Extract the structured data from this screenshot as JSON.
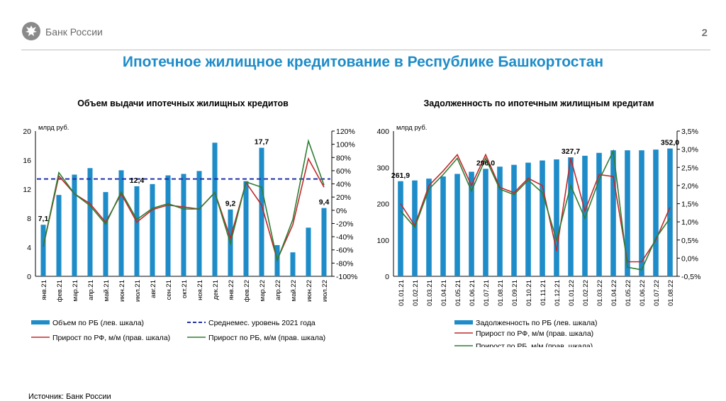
{
  "header": {
    "bank_name": "Банк России",
    "page_number": "2",
    "logo_icon": "eagle-emblem-icon"
  },
  "main_title": "Ипотечное жилищное кредитование в Республике Башкортостан",
  "source": "Источник: Банк России",
  "colors": {
    "bar": "#1e8cc8",
    "red_line": "#c0282c",
    "green_line": "#2e7d32",
    "avg_line": "#1f2fa8",
    "title": "#1e8cc8"
  },
  "chart_data": [
    {
      "type": "bar",
      "title": "Объем выдачи ипотечных жилищных кредитов",
      "ylabel": "млрд руб.",
      "ylim": [
        0,
        20
      ],
      "y_ticks": [
        "0",
        "4",
        "8",
        "12",
        "16",
        "20"
      ],
      "y2lim": [
        -100,
        120
      ],
      "y2_ticks": [
        "-100%",
        "-80%",
        "-60%",
        "-40%",
        "-20%",
        "0%",
        "20%",
        "40%",
        "60%",
        "80%",
        "100%",
        "120%"
      ],
      "categories": [
        "янв.21",
        "фев.21",
        "мар.21",
        "апр.21",
        "май.21",
        "июн.21",
        "июл.21",
        "авг.21",
        "сен.21",
        "окт.21",
        "ноя.21",
        "дек.21",
        "янв.22",
        "фев.22",
        "мар.22",
        "апр.22",
        "май.22",
        "июн.22",
        "июл.22"
      ],
      "series": [
        {
          "name": "Объем по РБ (лев. шкала)",
          "axis": "left",
          "values": [
            7.1,
            11.2,
            14.0,
            14.9,
            11.6,
            14.6,
            12.4,
            12.7,
            13.9,
            14.1,
            14.5,
            18.4,
            9.2,
            13.1,
            17.7,
            4.3,
            3.3,
            6.7,
            9.4
          ]
        },
        {
          "name": "Прирост по РФ, м/м (прав. шкала)",
          "axis": "right",
          "values": [
            -55,
            52,
            25,
            10,
            -18,
            25,
            -18,
            1,
            8,
            5,
            2,
            27,
            -42,
            42,
            8,
            -75,
            -22,
            78,
            35
          ]
        },
        {
          "name": "Прирост по РБ, м/м (прав. шкала)",
          "axis": "right",
          "values": [
            -55,
            57,
            25,
            7,
            -21,
            28,
            -14,
            3,
            10,
            2,
            2,
            27,
            -50,
            43,
            35,
            -76,
            -14,
            105,
            38
          ]
        }
      ],
      "avg_line": {
        "name": "Среднемес. уровень 2021 года",
        "value": 13.4
      },
      "data_labels": [
        {
          "index": 0,
          "text": "7,1"
        },
        {
          "index": 6,
          "text": "12,4"
        },
        {
          "index": 12,
          "text": "9,2"
        },
        {
          "index": 14,
          "text": "17,7"
        },
        {
          "index": 18,
          "text": "9,4"
        }
      ],
      "legend": [
        "Объем по РБ (лев. шкала)",
        "Среднемес. уровень 2021 года",
        "Прирост по РФ, м/м (прав. шкала)",
        "Прирост по РБ, м/м (прав. шкала)"
      ]
    },
    {
      "type": "bar",
      "title": "Задолженность по ипотечным жилищным кредитам",
      "ylabel": "млрд руб.",
      "ylim": [
        0,
        400
      ],
      "y_ticks": [
        "0",
        "100",
        "200",
        "300",
        "400"
      ],
      "y2lim": [
        -0.5,
        3.5
      ],
      "y2_ticks": [
        "-0,5%",
        "0,0%",
        "0,5%",
        "1,0%",
        "1,5%",
        "2,0%",
        "2,5%",
        "3,0%",
        "3,5%"
      ],
      "categories": [
        "01.01.21",
        "01.02.21",
        "01.03.21",
        "01.04.21",
        "01.05.21",
        "01.06.21",
        "01.07.21",
        "01.08.21",
        "01.09.21",
        "01.10.21",
        "01.11.21",
        "01.12.21",
        "01.01.22",
        "01.02.22",
        "01.03.22",
        "01.04.22",
        "01.05.22",
        "01.06.22",
        "01.07.22",
        "01.08.22"
      ],
      "series": [
        {
          "name": "Задолженность по РБ (лев. шкала)",
          "axis": "left",
          "values": [
            261.9,
            264.0,
            269.0,
            275.0,
            282.0,
            288.0,
            296.0,
            302.0,
            307.0,
            313.0,
            319.0,
            322.0,
            327.7,
            332.0,
            340.0,
            347.0,
            347.0,
            347.0,
            349.0,
            352.0
          ]
        },
        {
          "name": "Прирост по РФ, м/м (прав. шкала)",
          "axis": "right",
          "values": [
            1.5,
            0.9,
            2.0,
            2.4,
            2.85,
            2.0,
            2.85,
            1.95,
            1.8,
            2.2,
            2.0,
            0.2,
            2.75,
            1.3,
            2.3,
            2.25,
            -0.1,
            -0.1,
            0.5,
            1.4
          ]
        },
        {
          "name": "Прирост по РБ, м/м (прав. шкала)",
          "axis": "right",
          "values": [
            1.3,
            0.85,
            1.9,
            2.3,
            2.75,
            1.85,
            2.75,
            1.9,
            1.75,
            2.15,
            1.8,
            0.5,
            2.0,
            1.1,
            2.15,
            2.95,
            -0.25,
            -0.32,
            0.55,
            1.1
          ]
        }
      ],
      "data_labels": [
        {
          "index": 0,
          "text": "261,9"
        },
        {
          "index": 6,
          "text": "296,0"
        },
        {
          "index": 12,
          "text": "327,7"
        },
        {
          "index": 19,
          "text": "352,0"
        }
      ],
      "legend": [
        "Задолженность по РБ (лев. шкала)",
        "Прирост по РФ, м/м (прав. шкала)",
        "Прирост по РБ, м/м (прав. шкала)"
      ]
    }
  ]
}
